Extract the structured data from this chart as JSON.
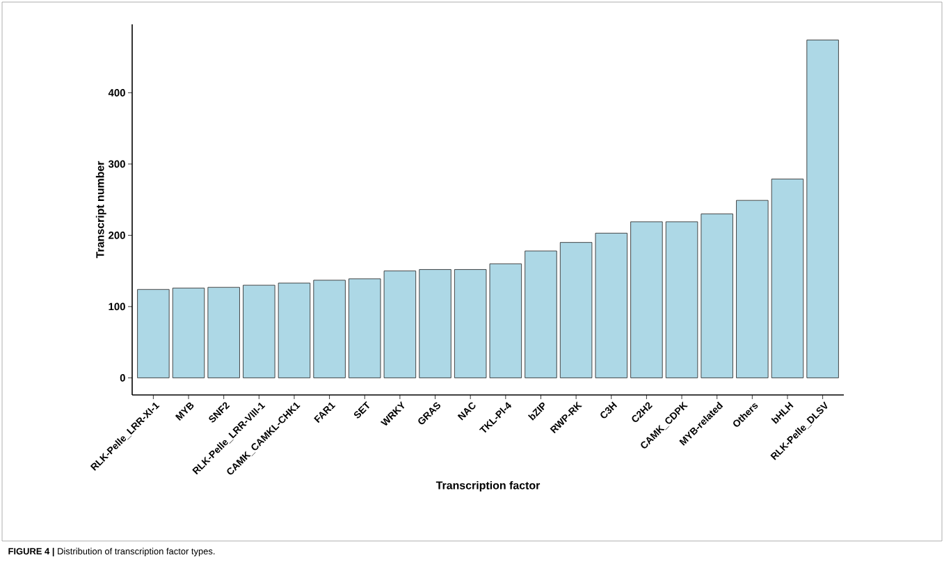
{
  "chart_data": {
    "type": "bar",
    "xlabel": "Transcription factor",
    "ylabel": "Transcript number",
    "categories": [
      "RLK-Pelle_LRR-XI-1",
      "MYB",
      "SNF2",
      "RLK-Pelle_LRR-VIII-1",
      "CAMK_CAMKL-CHK1",
      "FAR1",
      "SET",
      "WRKY",
      "GRAS",
      "NAC",
      "TKL-Pl-4",
      "bZIP",
      "RWP-RK",
      "C3H",
      "C2H2",
      "CAMK_CDPK",
      "MYB-related",
      "Others",
      "bHLH",
      "RLK-Pelle_DLSV"
    ],
    "values": [
      124,
      126,
      127,
      130,
      133,
      137,
      139,
      150,
      152,
      152,
      160,
      178,
      190,
      203,
      219,
      219,
      230,
      249,
      279,
      474
    ],
    "color": "#add8e6",
    "ylim": [
      -24,
      496
    ],
    "yticks": [
      0,
      100,
      200,
      300,
      400
    ],
    "grid": false,
    "annotations": [
      "**FIGURE 4 |** Distribution of transcription factor types."
    ]
  }
}
